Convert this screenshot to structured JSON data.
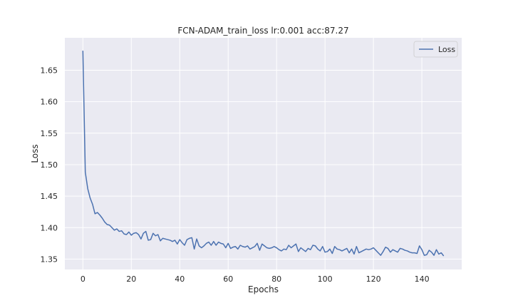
{
  "chart_data": {
    "type": "line",
    "title": "FCN-ADAM_train_loss lr:0.001 acc:87.27",
    "xlabel": "Epochs",
    "ylabel": "Loss",
    "xlim": [
      -7.45,
      156.45
    ],
    "ylim": [
      1.3335,
      1.7015
    ],
    "xticks": [
      0,
      20,
      40,
      60,
      80,
      100,
      120,
      140
    ],
    "xtick_labels": [
      "0",
      "20",
      "40",
      "60",
      "80",
      "100",
      "120",
      "140"
    ],
    "yticks": [
      1.35,
      1.4,
      1.45,
      1.5,
      1.55,
      1.6,
      1.65
    ],
    "ytick_labels": [
      "1.35",
      "1.40",
      "1.45",
      "1.50",
      "1.55",
      "1.60",
      "1.65"
    ],
    "grid": true,
    "legend": {
      "position": "top-right"
    },
    "series": [
      {
        "name": "Loss",
        "color": "#4c72b0",
        "x_start": 0,
        "x_step": 1,
        "values": [
          1.681,
          1.488,
          1.462,
          1.447,
          1.437,
          1.422,
          1.424,
          1.42,
          1.415,
          1.409,
          1.405,
          1.404,
          1.4,
          1.396,
          1.398,
          1.394,
          1.395,
          1.39,
          1.389,
          1.393,
          1.388,
          1.391,
          1.392,
          1.389,
          1.382,
          1.391,
          1.394,
          1.38,
          1.381,
          1.391,
          1.387,
          1.389,
          1.379,
          1.383,
          1.382,
          1.381,
          1.38,
          1.378,
          1.38,
          1.374,
          1.381,
          1.376,
          1.372,
          1.381,
          1.383,
          1.384,
          1.366,
          1.382,
          1.371,
          1.368,
          1.371,
          1.375,
          1.377,
          1.372,
          1.378,
          1.372,
          1.377,
          1.375,
          1.374,
          1.368,
          1.375,
          1.367,
          1.369,
          1.37,
          1.366,
          1.372,
          1.37,
          1.369,
          1.371,
          1.366,
          1.368,
          1.37,
          1.375,
          1.364,
          1.374,
          1.371,
          1.368,
          1.367,
          1.368,
          1.37,
          1.368,
          1.365,
          1.363,
          1.366,
          1.365,
          1.372,
          1.368,
          1.371,
          1.374,
          1.362,
          1.368,
          1.365,
          1.362,
          1.367,
          1.365,
          1.372,
          1.371,
          1.366,
          1.363,
          1.37,
          1.361,
          1.362,
          1.366,
          1.359,
          1.37,
          1.366,
          1.365,
          1.363,
          1.365,
          1.367,
          1.36,
          1.366,
          1.358,
          1.37,
          1.36,
          1.362,
          1.364,
          1.366,
          1.365,
          1.366,
          1.368,
          1.364,
          1.36,
          1.356,
          1.362,
          1.369,
          1.367,
          1.361,
          1.365,
          1.363,
          1.361,
          1.367,
          1.366,
          1.364,
          1.363,
          1.361,
          1.36,
          1.36,
          1.359,
          1.371,
          1.365,
          1.356,
          1.357,
          1.364,
          1.361,
          1.356,
          1.365,
          1.358,
          1.36,
          1.355
        ]
      }
    ]
  }
}
